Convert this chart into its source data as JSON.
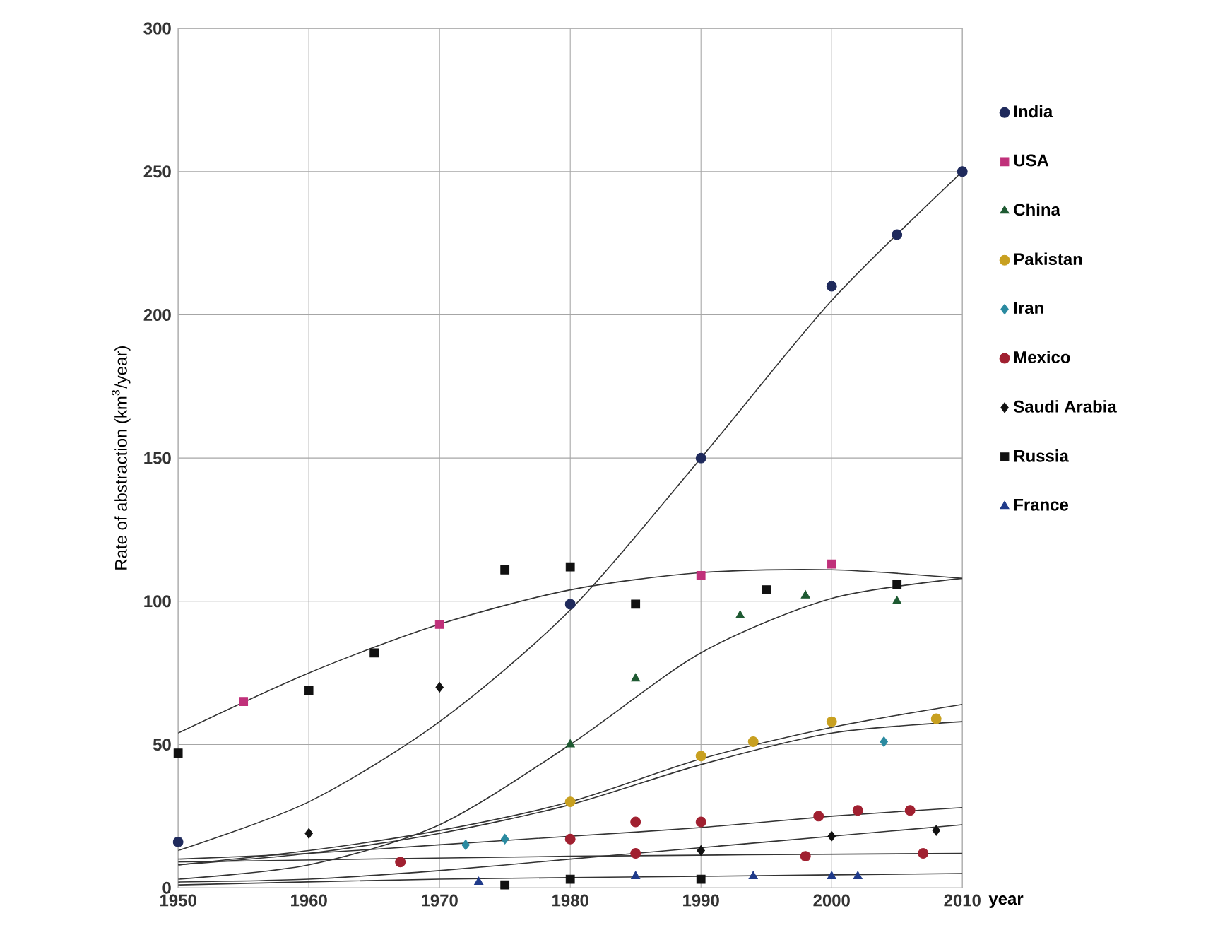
{
  "chart_data": {
    "type": "scatter",
    "ylabel": "Rate of abstraction (km$^{3}$/year)",
    "xlabel": "year",
    "xlim": [
      1950,
      2010
    ],
    "ylim": [
      0,
      300
    ],
    "xticks": [
      1950,
      1960,
      1970,
      1980,
      1990,
      2000,
      2010
    ],
    "yticks": [
      0,
      50,
      100,
      150,
      200,
      250,
      300
    ],
    "grid": true,
    "legend": "right",
    "series": [
      {
        "type": "line",
        "color": "#333333",
        "marker": "none",
        "x": [
          1950,
          1960,
          1970,
          1980,
          1990,
          2000,
          2010
        ],
        "values": [
          13,
          30,
          58,
          97,
          150,
          205,
          250
        ]
      },
      {
        "type": "line",
        "color": "#333333",
        "marker": "none",
        "x": [
          1950,
          1960,
          1970,
          1980,
          1990,
          2000,
          2010
        ],
        "values": [
          54,
          75,
          92,
          104,
          110,
          111,
          108
        ]
      },
      {
        "type": "line",
        "color": "#333333",
        "marker": "none",
        "x": [
          1950,
          1960,
          1970,
          1980,
          1990,
          2000,
          2010
        ],
        "values": [
          3,
          8,
          22,
          50,
          82,
          101,
          108
        ]
      },
      {
        "type": "line",
        "color": "#333333",
        "marker": "none",
        "x": [
          1950,
          1960,
          1970,
          1980,
          1990,
          2000,
          2010
        ],
        "values": [
          8,
          13,
          20,
          30,
          45,
          56,
          64
        ]
      },
      {
        "type": "line",
        "color": "#333333",
        "marker": "none",
        "x": [
          1950,
          1960,
          1970,
          1980,
          1990,
          2000,
          2010
        ],
        "values": [
          8,
          12,
          19,
          29,
          43,
          54,
          58
        ]
      },
      {
        "type": "line",
        "color": "#333333",
        "marker": "none",
        "x": [
          1950,
          1960,
          1970,
          1980,
          1990,
          2000,
          2010
        ],
        "values": [
          10,
          12,
          15,
          18,
          21,
          25,
          28
        ]
      },
      {
        "type": "line",
        "color": "#333333",
        "marker": "none",
        "x": [
          1950,
          1960,
          1970,
          1980,
          1990,
          2000,
          2010
        ],
        "values": [
          2,
          3,
          6,
          10,
          14,
          18,
          22
        ]
      },
      {
        "type": "line",
        "color": "#333333",
        "marker": "none",
        "x": [
          1950,
          1980,
          2010
        ],
        "values": [
          9,
          11,
          12
        ]
      },
      {
        "type": "line",
        "color": "#333333",
        "marker": "none",
        "x": [
          1950,
          1970,
          1990,
          2010
        ],
        "values": [
          1,
          3,
          4,
          5
        ]
      },
      {
        "name": "India",
        "color": "#1f2a5c",
        "marker": "circle",
        "x": [
          1950,
          1980,
          1990,
          2000,
          2005,
          2010
        ],
        "values": [
          16,
          99,
          150,
          210,
          228,
          250
        ]
      },
      {
        "name": "USA",
        "color": "#c0307a",
        "marker": "square",
        "x": [
          1955,
          1970,
          1990,
          2000
        ],
        "values": [
          65,
          92,
          109,
          113
        ]
      },
      {
        "name": "China",
        "color": "#1e5a32",
        "marker": "triangle",
        "x": [
          1980,
          1985,
          1993,
          1998,
          2005
        ],
        "values": [
          50,
          73,
          95,
          102,
          100
        ]
      },
      {
        "name": "Pakistan",
        "color": "#c8a020",
        "marker": "circle",
        "x": [
          1980,
          1990,
          1994,
          2000,
          2008
        ],
        "values": [
          30,
          46,
          51,
          58,
          59
        ]
      },
      {
        "name": "Iran",
        "color": "#2a8aa0",
        "marker": "diamond",
        "x": [
          1972,
          1975,
          2004
        ],
        "values": [
          15,
          17,
          51
        ]
      },
      {
        "name": "Mexico",
        "color": "#a02030",
        "marker": "circle",
        "x": [
          1967,
          1980,
          1985,
          1985,
          1990,
          1998,
          1999,
          2002,
          2006,
          2007
        ],
        "values": [
          9,
          17,
          23,
          12,
          23,
          11,
          25,
          27,
          27,
          12
        ]
      },
      {
        "name": "Saudi Arabia",
        "color": "#111111",
        "marker": "diamond",
        "x": [
          1960,
          1970,
          1990,
          2000,
          2008
        ],
        "values": [
          19,
          70,
          13,
          18,
          20
        ]
      },
      {
        "name": "Russia",
        "color": "#111111",
        "marker": "square",
        "x": [
          1950,
          1960,
          1965,
          1975,
          1980,
          1985,
          1995,
          2005,
          1975,
          1980,
          1990
        ],
        "values": [
          47,
          69,
          82,
          111,
          112,
          99,
          104,
          106,
          1,
          3,
          3
        ]
      },
      {
        "name": "France",
        "color": "#1f3a8a",
        "marker": "triangle",
        "x": [
          1973,
          1985,
          1994,
          2000,
          2002
        ],
        "values": [
          2,
          4,
          4,
          4,
          4
        ]
      }
    ]
  }
}
